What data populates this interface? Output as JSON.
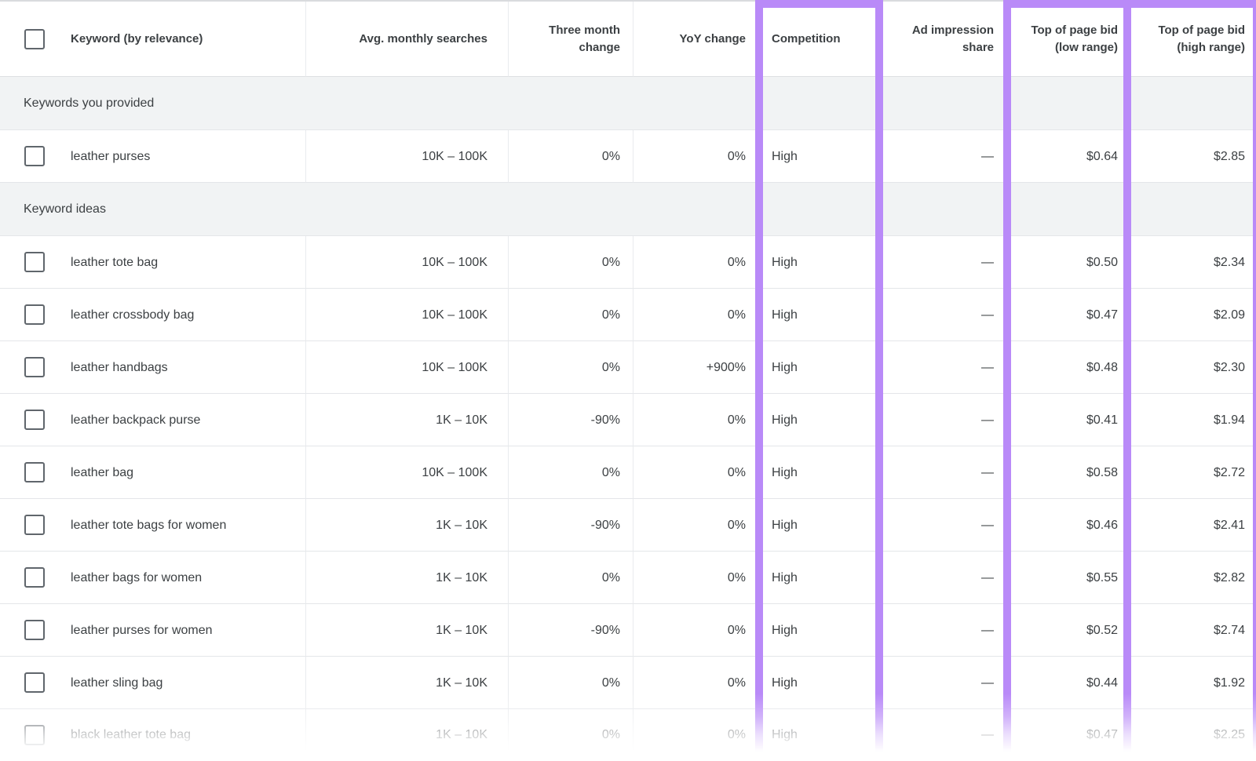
{
  "highlight_color": "#b98af8",
  "table": {
    "columns": [
      {
        "label": "Keyword (by relevance)",
        "align": "left",
        "highlighted": false
      },
      {
        "label": "Avg. monthly searches",
        "align": "right",
        "highlighted": false
      },
      {
        "label": "Three month change",
        "align": "right",
        "highlighted": false
      },
      {
        "label": "YoY change",
        "align": "right",
        "highlighted": false
      },
      {
        "label": "Competition",
        "align": "left",
        "highlighted": true
      },
      {
        "label": "Ad impression share",
        "align": "right",
        "highlighted": false
      },
      {
        "label": "Top of page bid (low range)",
        "align": "right",
        "highlighted": true
      },
      {
        "label": "Top of page bid (high range)",
        "align": "right",
        "highlighted": true
      }
    ],
    "sections": [
      {
        "label": "Keywords you provided",
        "rows": [
          {
            "keyword": "leather purses",
            "avg_monthly_searches": "10K – 100K",
            "three_month_change": "0%",
            "yoy_change": "0%",
            "competition": "High",
            "ad_impression_share": "—",
            "top_of_page_bid_low": "$0.64",
            "top_of_page_bid_high": "$2.85",
            "faded": false
          }
        ]
      },
      {
        "label": "Keyword ideas",
        "rows": [
          {
            "keyword": "leather tote bag",
            "avg_monthly_searches": "10K – 100K",
            "three_month_change": "0%",
            "yoy_change": "0%",
            "competition": "High",
            "ad_impression_share": "—",
            "top_of_page_bid_low": "$0.50",
            "top_of_page_bid_high": "$2.34",
            "faded": false
          },
          {
            "keyword": "leather crossbody bag",
            "avg_monthly_searches": "10K – 100K",
            "three_month_change": "0%",
            "yoy_change": "0%",
            "competition": "High",
            "ad_impression_share": "—",
            "top_of_page_bid_low": "$0.47",
            "top_of_page_bid_high": "$2.09",
            "faded": false
          },
          {
            "keyword": "leather handbags",
            "avg_monthly_searches": "10K – 100K",
            "three_month_change": "0%",
            "yoy_change": "+900%",
            "competition": "High",
            "ad_impression_share": "—",
            "top_of_page_bid_low": "$0.48",
            "top_of_page_bid_high": "$2.30",
            "faded": false
          },
          {
            "keyword": "leather backpack purse",
            "avg_monthly_searches": "1K – 10K",
            "three_month_change": "-90%",
            "yoy_change": "0%",
            "competition": "High",
            "ad_impression_share": "—",
            "top_of_page_bid_low": "$0.41",
            "top_of_page_bid_high": "$1.94",
            "faded": false
          },
          {
            "keyword": "leather bag",
            "avg_monthly_searches": "10K – 100K",
            "three_month_change": "0%",
            "yoy_change": "0%",
            "competition": "High",
            "ad_impression_share": "—",
            "top_of_page_bid_low": "$0.58",
            "top_of_page_bid_high": "$2.72",
            "faded": false
          },
          {
            "keyword": "leather tote bags for women",
            "avg_monthly_searches": "1K – 10K",
            "three_month_change": "-90%",
            "yoy_change": "0%",
            "competition": "High",
            "ad_impression_share": "—",
            "top_of_page_bid_low": "$0.46",
            "top_of_page_bid_high": "$2.41",
            "faded": false
          },
          {
            "keyword": "leather bags for women",
            "avg_monthly_searches": "1K – 10K",
            "three_month_change": "0%",
            "yoy_change": "0%",
            "competition": "High",
            "ad_impression_share": "—",
            "top_of_page_bid_low": "$0.55",
            "top_of_page_bid_high": "$2.82",
            "faded": false
          },
          {
            "keyword": "leather purses for women",
            "avg_monthly_searches": "1K – 10K",
            "three_month_change": "-90%",
            "yoy_change": "0%",
            "competition": "High",
            "ad_impression_share": "—",
            "top_of_page_bid_low": "$0.52",
            "top_of_page_bid_high": "$2.74",
            "faded": false
          },
          {
            "keyword": "leather sling bag",
            "avg_monthly_searches": "1K – 10K",
            "three_month_change": "0%",
            "yoy_change": "0%",
            "competition": "High",
            "ad_impression_share": "—",
            "top_of_page_bid_low": "$0.44",
            "top_of_page_bid_high": "$1.92",
            "faded": false
          },
          {
            "keyword": "black leather tote bag",
            "avg_monthly_searches": "1K – 10K",
            "three_month_change": "0%",
            "yoy_change": "0%",
            "competition": "High",
            "ad_impression_share": "—",
            "top_of_page_bid_low": "$0.47",
            "top_of_page_bid_high": "$2.25",
            "faded": true
          }
        ]
      }
    ]
  }
}
